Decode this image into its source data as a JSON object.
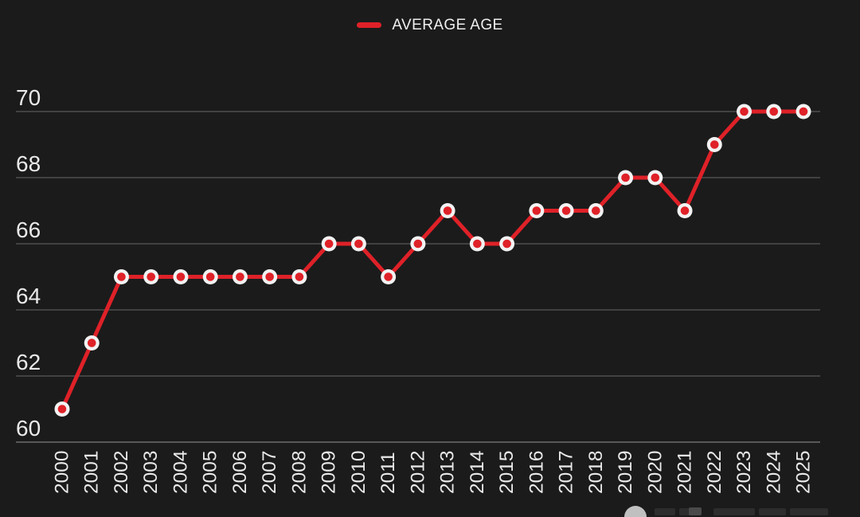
{
  "legend": {
    "label": "AVERAGE AGE"
  },
  "colors": {
    "background": "#1b1b1b",
    "accent_red": "#df2128",
    "text_light": "#e9e9e9",
    "gridline": "#414141",
    "axis_line": "#585858",
    "marker_ring": "#f2f2f2"
  },
  "chart_data": {
    "type": "line",
    "title": "",
    "xlabel": "",
    "ylabel": "",
    "legend_position": "top-center",
    "grid": "horizontal",
    "categories": [
      "2000",
      "2001",
      "2002",
      "2003",
      "2004",
      "2005",
      "2006",
      "2007",
      "2008",
      "2009",
      "2010",
      "2011",
      "2012",
      "2013",
      "2014",
      "2015",
      "2016",
      "2017",
      "2018",
      "2019",
      "2020",
      "2021",
      "2022",
      "2023",
      "2024",
      "2025"
    ],
    "series": [
      {
        "name": "AVERAGE AGE",
        "color": "#df2128",
        "marker": "circle-red-core-white-ring",
        "values": [
          61,
          63,
          65,
          65,
          65,
          65,
          65,
          65,
          65,
          66,
          66,
          65,
          66,
          67,
          66,
          66,
          67,
          67,
          67,
          68,
          68,
          67,
          69,
          70,
          70,
          70
        ]
      }
    ],
    "ylim": [
      60,
      70
    ],
    "yticks": [
      60,
      62,
      64,
      66,
      68,
      70
    ]
  },
  "watermark": {
    "logo_icon": "circle-logo-icon"
  }
}
